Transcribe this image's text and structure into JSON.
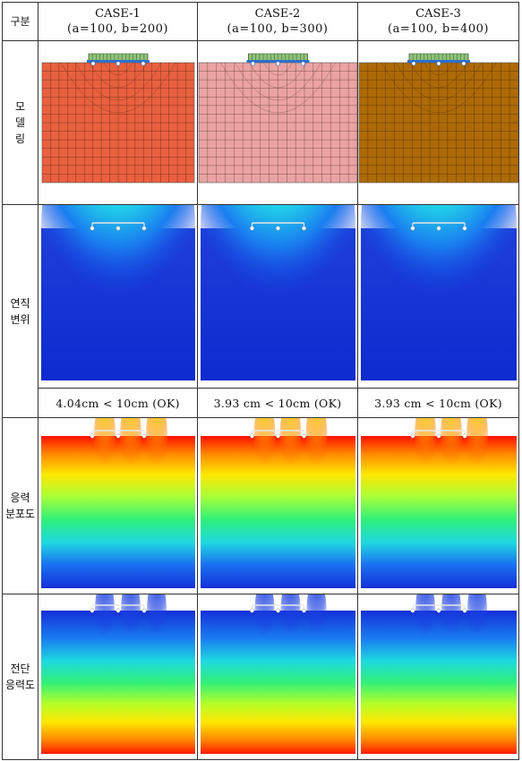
{
  "header": {
    "category_label": "구분",
    "cases": [
      {
        "name": "CASE-1",
        "params": "(a=100, b=200)"
      },
      {
        "name": "CASE-2",
        "params": "(a=100, b=300)"
      },
      {
        "name": "CASE-3",
        "params": "(a=100, b=400)"
      }
    ]
  },
  "rows": {
    "modeling": {
      "label_lines": [
        "모",
        "델",
        "링"
      ]
    },
    "vertical_displacement": {
      "label_lines": [
        "연직",
        "변위"
      ],
      "results": [
        "4.04cm < 10cm (OK)",
        "3.93 cm < 10cm (OK)",
        "3.93 cm < 10cm (OK)"
      ]
    },
    "stress_distribution": {
      "label_lines": [
        "응력",
        "분포도"
      ]
    },
    "shear_stress": {
      "label_lines": [
        "전단",
        "응력도"
      ]
    }
  },
  "colors": {
    "case1_mesh": "#e8603f",
    "case2_mesh": "#eaa3a3",
    "case3_mesh": "#ad6a06",
    "foundation_green": "#8fc27a",
    "foundation_blue": "#2b6fcf"
  }
}
